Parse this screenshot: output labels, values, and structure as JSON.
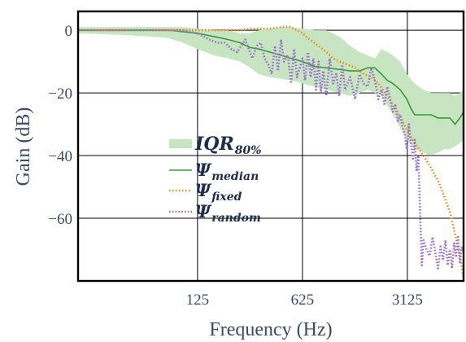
{
  "chart_data": {
    "type": "line",
    "xscale": "log",
    "xlabel": "Frequency (Hz)",
    "ylabel": "Gain (dB)",
    "xlim": [
      20,
      7400
    ],
    "ylim": [
      -80,
      6
    ],
    "xticks": [
      125,
      625,
      3125
    ],
    "xtick_labels": [
      "125",
      "625",
      "3125"
    ],
    "yticks": [
      0,
      -20,
      -40,
      -60
    ],
    "ytick_labels": [
      "0",
      "−20",
      "−40",
      "−60"
    ],
    "grid": true,
    "legend_position": "center-left",
    "legend": [
      {
        "series": "iqr",
        "main": "IQR",
        "sub": "80%"
      },
      {
        "series": "median",
        "main": "Ψ",
        "sub": "median"
      },
      {
        "series": "fixed",
        "main": "Ψ",
        "sub": "fixed"
      },
      {
        "series": "random",
        "main": "Ψ",
        "sub": "random"
      }
    ],
    "colors": {
      "iqr": "#c6e5c0",
      "median": "#3a9a3a",
      "fixed": "#f08a1c",
      "random": "#9b6fd0",
      "axis": "#000000",
      "grid": "#000000",
      "text": "#3b4a6b"
    },
    "series": [
      {
        "id": "iqr",
        "style": "band",
        "x": [
          20,
          40,
          60,
          80,
          100,
          125,
          160,
          200,
          240,
          280,
          320,
          380,
          450,
          525,
          625,
          750,
          900,
          1100,
          1300,
          1500,
          1700,
          1900,
          2100,
          2300,
          2500,
          2800,
          3100,
          3500,
          4000,
          4500,
          5000,
          5500,
          6000,
          6500,
          7000,
          7400
        ],
        "lower": [
          -1,
          -1.5,
          -2,
          -2.5,
          -4,
          -6,
          -8,
          -9,
          -10,
          -12,
          -14,
          -15,
          -15.5,
          -16,
          -17,
          -18,
          -19,
          -20,
          -21,
          -20,
          -19,
          -20,
          -21,
          -24,
          -27,
          -31,
          -35,
          -38,
          -39,
          -40,
          -39,
          -38,
          -38,
          -37,
          -36,
          -35
        ],
        "upper": [
          1,
          1,
          1,
          1,
          1,
          0.5,
          0,
          0,
          -1,
          -1,
          0,
          0.5,
          1,
          1,
          0.5,
          0,
          0,
          -2,
          -5,
          -7,
          -8,
          -9,
          -6,
          -7,
          -8,
          -10,
          -14,
          -17,
          -19,
          -20,
          -20,
          -20,
          -20,
          -21,
          -20,
          -19
        ]
      },
      {
        "id": "median",
        "style": "solid",
        "x": [
          20,
          40,
          60,
          80,
          100,
          125,
          160,
          200,
          240,
          280,
          320,
          380,
          450,
          525,
          625,
          750,
          900,
          1100,
          1300,
          1500,
          1700,
          1900,
          2100,
          2300,
          2500,
          2800,
          3100,
          3300,
          3500,
          4000,
          4500,
          5000,
          5500,
          6000,
          6500,
          7000,
          7400
        ],
        "values": [
          0,
          0,
          0,
          0,
          -0.5,
          -1,
          -2,
          -3,
          -4,
          -5.5,
          -6,
          -7,
          -8,
          -9,
          -10,
          -11.5,
          -12,
          -12.5,
          -13,
          -13,
          -12,
          -12,
          -14,
          -16,
          -17,
          -19,
          -22,
          -25,
          -27,
          -27,
          -27,
          -28,
          -28,
          -28,
          -30,
          -28,
          -26
        ]
      },
      {
        "id": "fixed",
        "style": "dashdot",
        "x": [
          20,
          40,
          60,
          80,
          100,
          125,
          160,
          200,
          240,
          280,
          320,
          380,
          450,
          500,
          525,
          575,
          625,
          700,
          800,
          900,
          1000,
          1100,
          1250,
          1400,
          1600,
          1800,
          2000,
          2300,
          2600,
          2900,
          3200,
          3500,
          4000,
          4500,
          5000,
          5500,
          6000,
          6500,
          7000,
          7400
        ],
        "values": [
          0,
          0,
          0,
          0,
          0,
          0,
          0,
          0,
          0,
          0.5,
          0.5,
          0.5,
          1,
          1.2,
          1,
          0,
          -1,
          -3,
          -5,
          -7,
          -9,
          -10,
          -11,
          -12,
          -14,
          -15,
          -17,
          -21,
          -25,
          -29,
          -33,
          -36,
          -40,
          -44,
          -48,
          -53,
          -58,
          -65,
          -72,
          -79
        ]
      },
      {
        "id": "random",
        "style": "dotted",
        "x": [
          20,
          40,
          60,
          80,
          100,
          125,
          150,
          170,
          190,
          210,
          230,
          260,
          290,
          310,
          330,
          350,
          370,
          390,
          410,
          430,
          450,
          470,
          500,
          525,
          550,
          575,
          600,
          625,
          650,
          680,
          710,
          740,
          770,
          800,
          830,
          860,
          900,
          950,
          1000,
          1050,
          1100,
          1150,
          1200,
          1300,
          1400,
          1500,
          1600,
          1700,
          1800,
          1900,
          2000,
          2100,
          2200,
          2300,
          2400,
          2500,
          2600,
          2700,
          2800,
          2900,
          3000,
          3100,
          3200,
          3300,
          3400,
          3500,
          3600,
          3700,
          3800,
          3900,
          4000,
          4200,
          4400,
          4600,
          4800,
          5000,
          5200,
          5400,
          5600,
          5800,
          6000,
          6200,
          6400,
          6600,
          6800,
          7000,
          7200,
          7400
        ],
        "values": [
          0,
          0,
          0,
          0,
          0,
          -1,
          -3,
          -4,
          -4,
          -6,
          -7,
          -3,
          -9,
          -5,
          -4,
          -9,
          -11,
          -14,
          -5,
          -13,
          -3,
          -10,
          -8,
          -17,
          -6,
          -15,
          -12,
          -9,
          -16,
          -7,
          -15,
          -9,
          -19,
          -10,
          -20,
          -13,
          -21,
          -9,
          -17,
          -14,
          -21,
          -11,
          -19,
          -15,
          -22,
          -14,
          -17,
          -18,
          -12,
          -16,
          -22,
          -19,
          -24,
          -18,
          -22,
          -26,
          -24,
          -29,
          -27,
          -31,
          -33,
          -38,
          -30,
          -36,
          -41,
          -35,
          -45,
          -40,
          -58,
          -75,
          -67,
          -70,
          -72,
          -66,
          -71,
          -76,
          -69,
          -73,
          -67,
          -75,
          -70,
          -76,
          -68,
          -72,
          -66,
          -74,
          -69,
          -71
        ]
      }
    ]
  }
}
